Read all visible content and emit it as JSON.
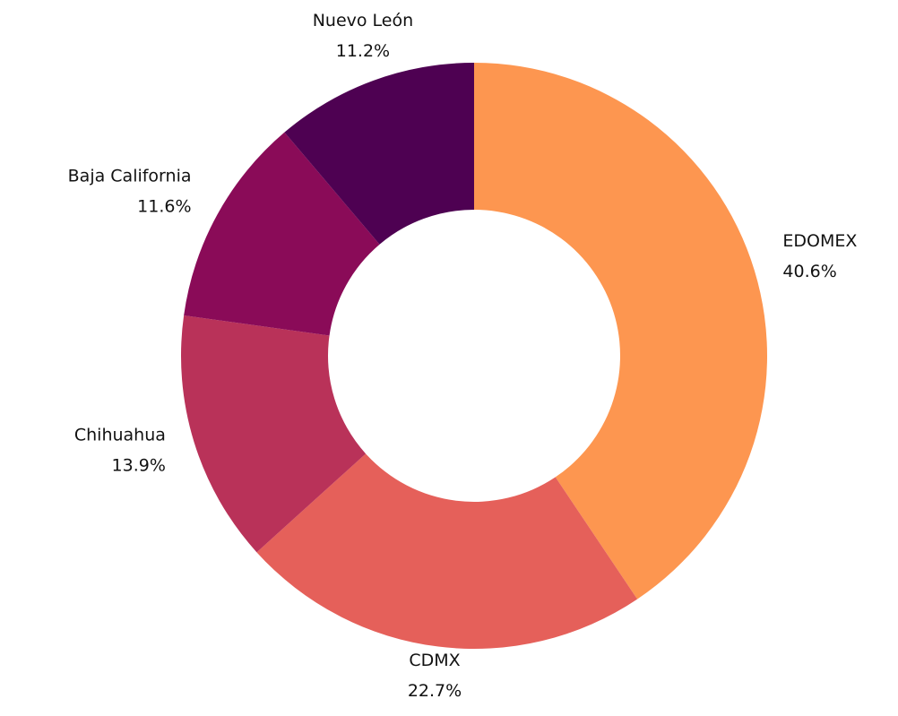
{
  "chart_data": {
    "type": "donut",
    "categories": [
      "EDOMEX",
      "CDMX",
      "Chihuahua",
      "Baja California",
      "Nuevo León"
    ],
    "values": [
      40.6,
      22.7,
      13.9,
      11.6,
      11.2
    ],
    "value_labels": [
      "40.6%",
      "22.7%",
      "13.9%",
      "11.6%",
      "11.2%"
    ],
    "colors": [
      "#fd9650",
      "#e5605a",
      "#b93259",
      "#8a0b58",
      "#4e0152"
    ]
  }
}
